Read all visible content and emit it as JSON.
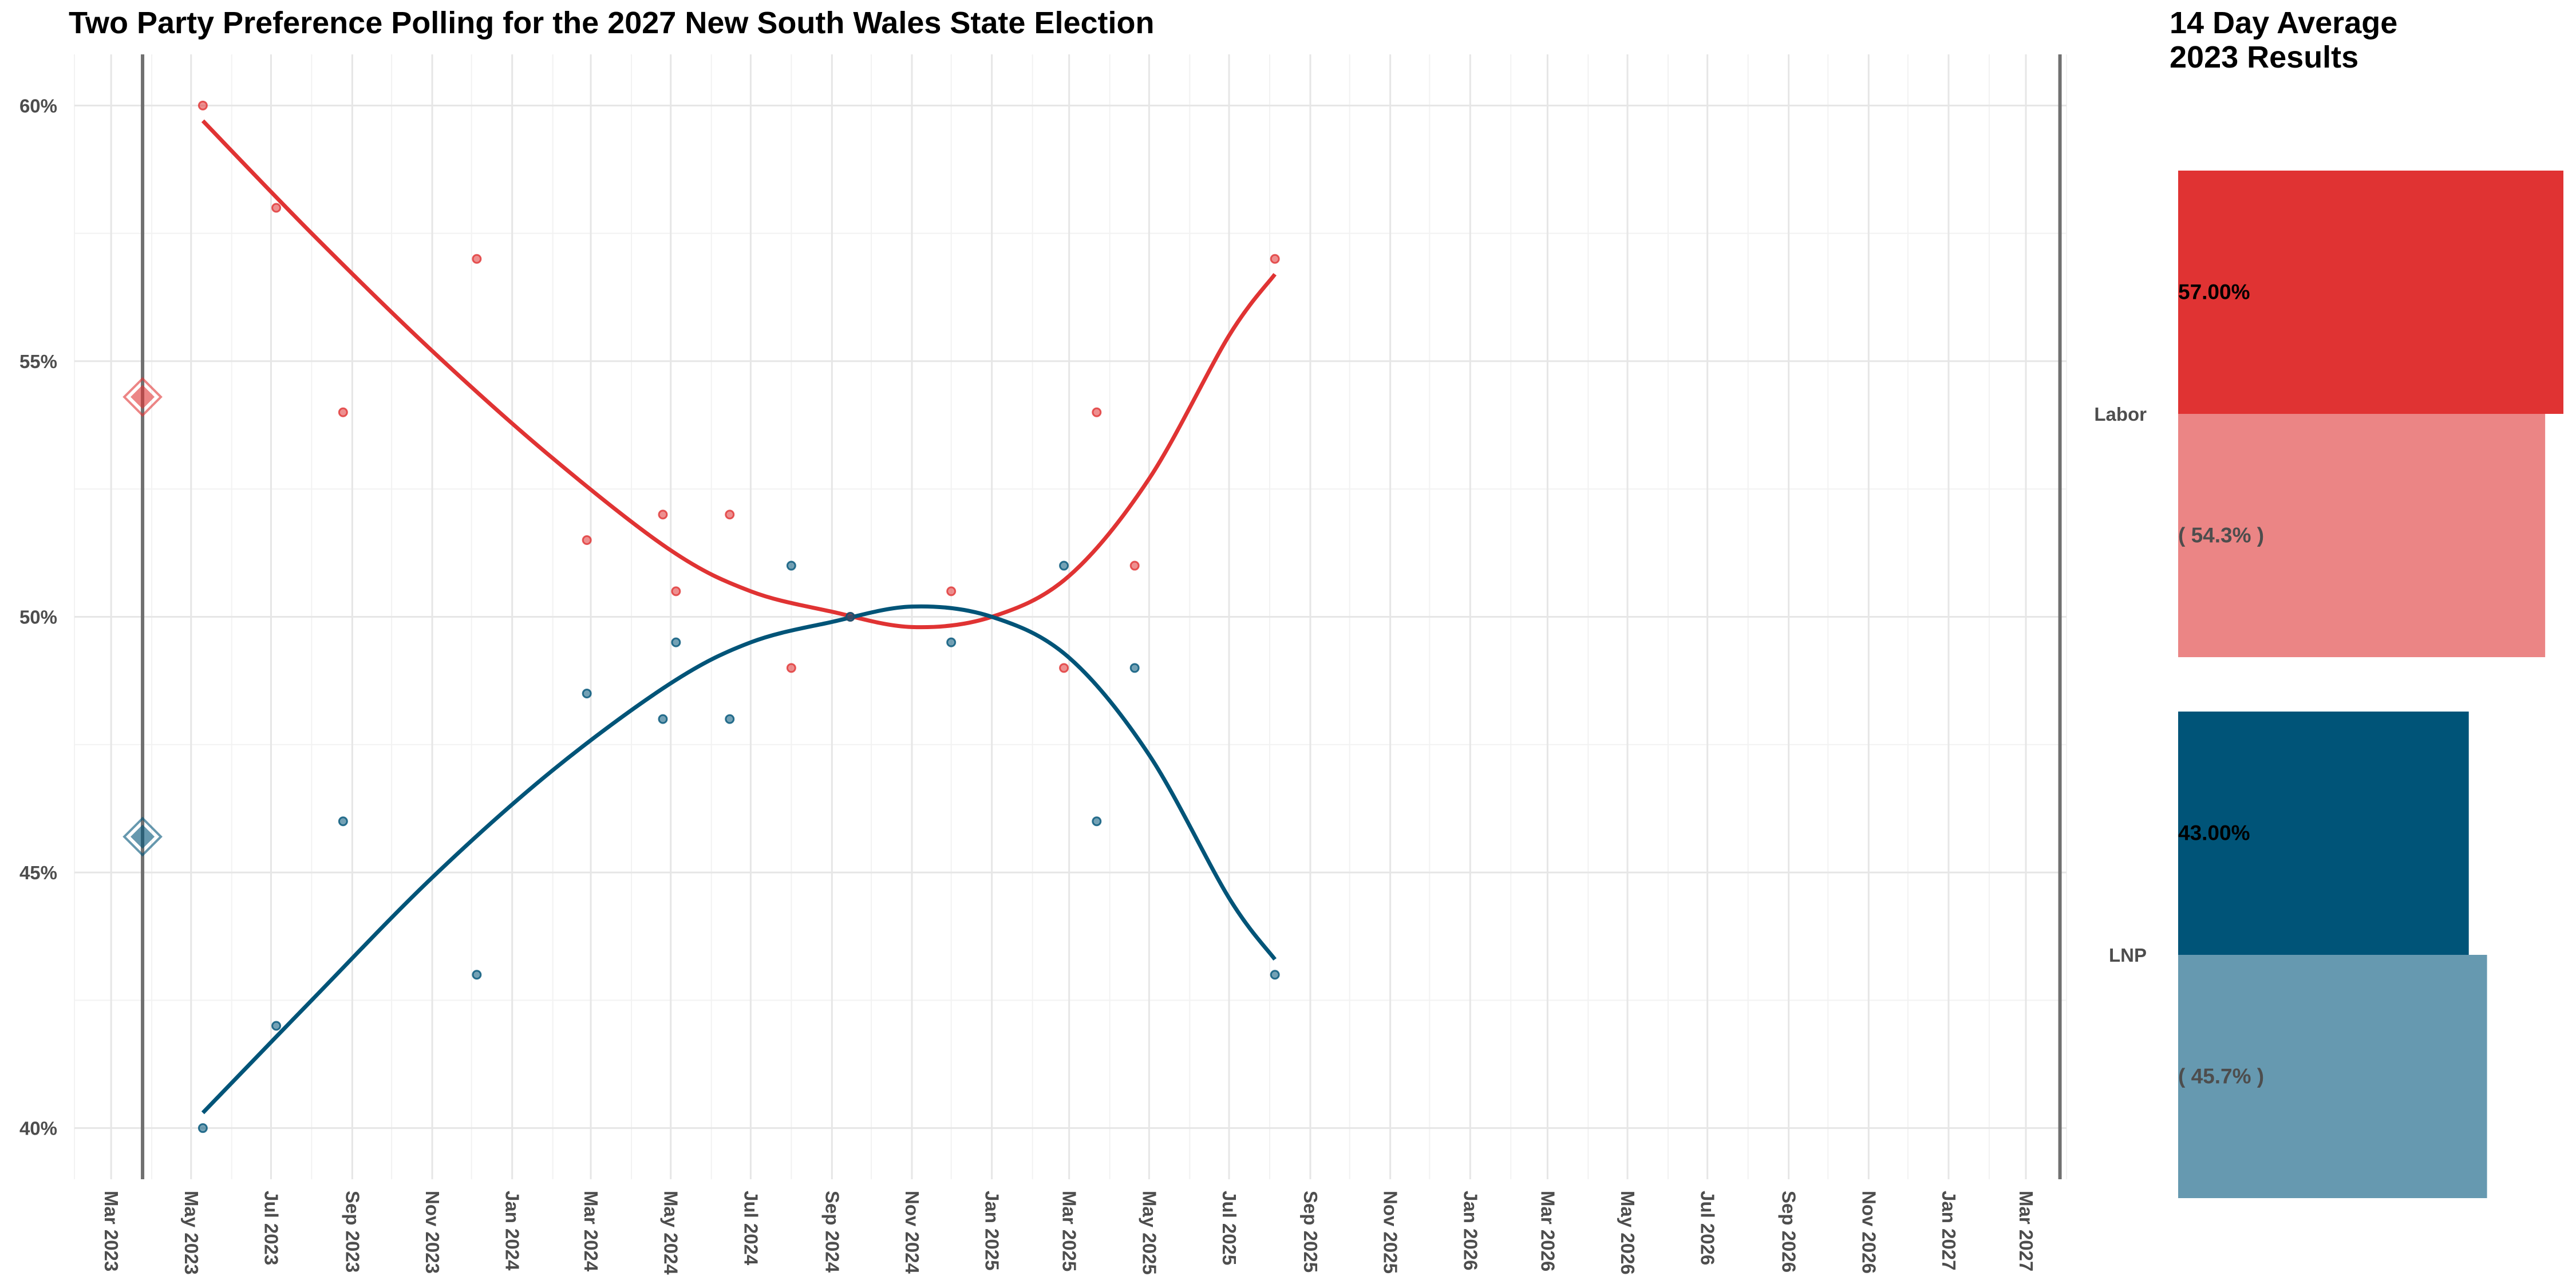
{
  "chart_data": [
    {
      "type": "scatter",
      "title": "Two Party Preference Polling for the 2027 New South Wales State Election",
      "xlabel": "",
      "ylabel": "",
      "x_tick_labels": [
        "Mar 2023",
        "May 2023",
        "Jul 2023",
        "Sep 2023",
        "Nov 2023",
        "Jan 2024",
        "Mar 2024",
        "May 2024",
        "Jul 2024",
        "Sep 2024",
        "Nov 2024",
        "Jan 2025",
        "Mar 2025",
        "May 2025",
        "Jul 2025",
        "Sep 2025",
        "Nov 2025",
        "Jan 2026",
        "Mar 2026",
        "May 2026",
        "Jul 2026",
        "Sep 2026",
        "Nov 2026",
        "Jan 2027",
        "Mar 2027"
      ],
      "y_tick_labels": [
        "40%",
        "45%",
        "50%",
        "55%",
        "60%"
      ],
      "ylim": [
        39,
        61
      ],
      "xlim": [
        "2023-02-01",
        "2027-04-01"
      ],
      "grid": true,
      "vlines": [
        {
          "date": "2023-03-25",
          "label": ""
        },
        {
          "date": "2027-03-27",
          "label": ""
        }
      ],
      "series": [
        {
          "name": "Labor",
          "color": "#E03333",
          "points": [
            {
              "x": "2023-05-10",
              "y": 60.0
            },
            {
              "x": "2023-07-05",
              "y": 58.0
            },
            {
              "x": "2023-08-25",
              "y": 54.0
            },
            {
              "x": "2023-12-05",
              "y": 57.0
            },
            {
              "x": "2024-02-27",
              "y": 51.5
            },
            {
              "x": "2024-04-25",
              "y": 52.0
            },
            {
              "x": "2024-05-05",
              "y": 50.5
            },
            {
              "x": "2024-06-15",
              "y": 52.0
            },
            {
              "x": "2024-08-01",
              "y": 49.0
            },
            {
              "x": "2024-09-15",
              "y": 50.0
            },
            {
              "x": "2024-12-01",
              "y": 50.5
            },
            {
              "x": "2025-02-25",
              "y": 49.0
            },
            {
              "x": "2025-03-22",
              "y": 54.0
            },
            {
              "x": "2025-04-20",
              "y": 51.0
            },
            {
              "x": "2025-08-05",
              "y": 57.0
            }
          ],
          "trend": [
            {
              "x": "2023-05-10",
              "y": 59.7
            },
            {
              "x": "2023-08-01",
              "y": 57.5
            },
            {
              "x": "2023-11-01",
              "y": 55.2
            },
            {
              "x": "2024-02-01",
              "y": 53.1
            },
            {
              "x": "2024-05-01",
              "y": 51.3
            },
            {
              "x": "2024-07-01",
              "y": 50.5
            },
            {
              "x": "2024-09-01",
              "y": 50.1
            },
            {
              "x": "2024-11-01",
              "y": 49.8
            },
            {
              "x": "2025-01-01",
              "y": 50.0
            },
            {
              "x": "2025-03-01",
              "y": 50.8
            },
            {
              "x": "2025-05-01",
              "y": 52.7
            },
            {
              "x": "2025-07-01",
              "y": 55.5
            },
            {
              "x": "2025-08-05",
              "y": 56.7
            }
          ],
          "average_marker": {
            "x": "2023-03-25",
            "y": 54.3
          }
        },
        {
          "name": "LNP",
          "color": "#005478",
          "points": [
            {
              "x": "2023-05-10",
              "y": 40.0
            },
            {
              "x": "2023-07-05",
              "y": 42.0
            },
            {
              "x": "2023-08-25",
              "y": 46.0
            },
            {
              "x": "2023-12-05",
              "y": 43.0
            },
            {
              "x": "2024-02-27",
              "y": 48.5
            },
            {
              "x": "2024-04-25",
              "y": 48.0
            },
            {
              "x": "2024-05-05",
              "y": 49.5
            },
            {
              "x": "2024-06-15",
              "y": 48.0
            },
            {
              "x": "2024-08-01",
              "y": 51.0
            },
            {
              "x": "2024-09-15",
              "y": 50.0
            },
            {
              "x": "2024-12-01",
              "y": 49.5
            },
            {
              "x": "2025-02-25",
              "y": 51.0
            },
            {
              "x": "2025-03-22",
              "y": 46.0
            },
            {
              "x": "2025-04-20",
              "y": 49.0
            },
            {
              "x": "2025-08-05",
              "y": 43.0
            }
          ],
          "trend": [
            {
              "x": "2023-05-10",
              "y": 40.3
            },
            {
              "x": "2023-08-01",
              "y": 42.5
            },
            {
              "x": "2023-11-01",
              "y": 44.9
            },
            {
              "x": "2024-02-01",
              "y": 47.0
            },
            {
              "x": "2024-05-01",
              "y": 48.7
            },
            {
              "x": "2024-07-01",
              "y": 49.5
            },
            {
              "x": "2024-09-01",
              "y": 49.9
            },
            {
              "x": "2024-11-01",
              "y": 50.2
            },
            {
              "x": "2025-01-01",
              "y": 50.0
            },
            {
              "x": "2025-03-01",
              "y": 49.2
            },
            {
              "x": "2025-05-01",
              "y": 47.3
            },
            {
              "x": "2025-07-01",
              "y": 44.5
            },
            {
              "x": "2025-08-05",
              "y": 43.3
            }
          ],
          "average_marker": {
            "x": "2023-03-25",
            "y": 45.7
          }
        }
      ]
    },
    {
      "type": "bar",
      "title": "14 Day Average\n2023 Results",
      "categories": [
        "Labor",
        "LNP"
      ],
      "xlim": [
        0,
        57
      ],
      "series": [
        {
          "name": "14 Day Average",
          "values": [
            57.0,
            43.0
          ],
          "labels": [
            "57.00%",
            "43.00%"
          ],
          "colors": [
            "#E03333",
            "#005478"
          ]
        },
        {
          "name": "2023 Results",
          "values": [
            54.3,
            45.7
          ],
          "labels": [
            "( 54.3% )",
            "( 45.7% )"
          ],
          "colors": [
            "#EB8585",
            "#6699B0"
          ]
        }
      ]
    }
  ]
}
